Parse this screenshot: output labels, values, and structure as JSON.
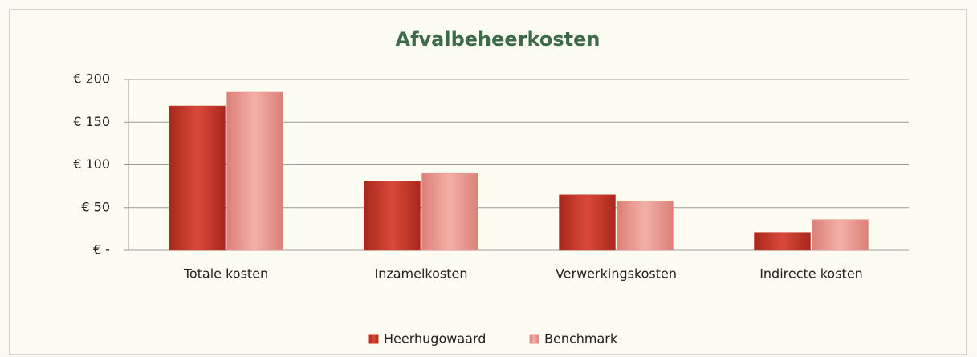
{
  "chart_data": {
    "type": "bar",
    "title": "Afvalbeheerkosten",
    "categories": [
      "Totale kosten",
      "Inzamelkosten",
      "Verwerkingskosten",
      "Indirecte kosten"
    ],
    "series": [
      {
        "name": "Heerhugowaard",
        "color": "#c8382a",
        "values": [
          169,
          81,
          65,
          21
        ]
      },
      {
        "name": "Benchmark",
        "color": "#e8958c",
        "values": [
          185,
          90,
          58,
          36
        ]
      }
    ],
    "ylim": [
      0,
      200
    ],
    "yticks": [
      {
        "value": 0,
        "label": "€ -"
      },
      {
        "value": 50,
        "label": "€ 50"
      },
      {
        "value": 100,
        "label": "€ 100"
      },
      {
        "value": 150,
        "label": "€ 150"
      },
      {
        "value": 200,
        "label": "€ 200"
      }
    ],
    "grid": true,
    "legend": "bottom"
  }
}
